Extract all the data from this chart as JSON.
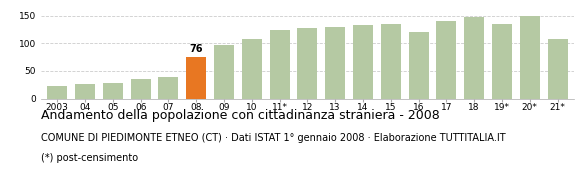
{
  "categories": [
    "2003",
    "04",
    "05",
    "06",
    "07",
    "08",
    "09",
    "10",
    "11*",
    "12",
    "13",
    "14",
    "15",
    "16",
    "17",
    "18",
    "19*",
    "20*",
    "21*"
  ],
  "values": [
    22,
    27,
    29,
    36,
    40,
    76,
    97,
    108,
    125,
    128,
    130,
    133,
    135,
    120,
    140,
    148,
    135,
    150,
    108
  ],
  "highlight_index": 5,
  "bar_color": "#b5c9a3",
  "highlight_color": "#e87722",
  "highlight_label": "76",
  "ylim": [
    0,
    160
  ],
  "yticks": [
    0,
    50,
    100,
    150
  ],
  "title": "Andamento della popolazione con cittadinanza straniera - 2008",
  "subtitle": "COMUNE DI PIEDIMONTE ETNEO (CT) · Dati ISTAT 1° gennaio 2008 · Elaborazione TUTTITALIA.IT",
  "footnote": "(*) post-censimento",
  "title_fontsize": 9,
  "subtitle_fontsize": 7,
  "footnote_fontsize": 7,
  "tick_fontsize": 6.5,
  "background_color": "#ffffff",
  "grid_color": "#cccccc"
}
